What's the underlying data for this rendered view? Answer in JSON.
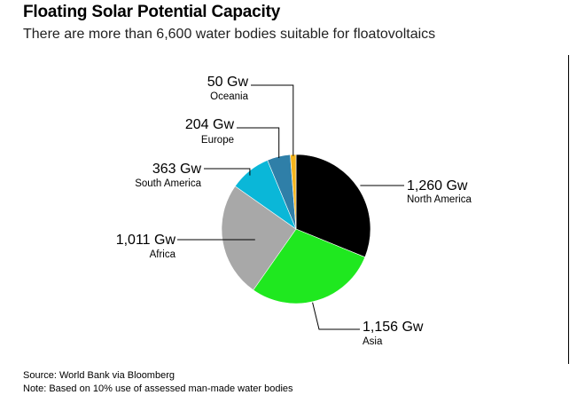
{
  "header": {
    "title": "Floating Solar Potential Capacity",
    "subtitle": "There are more than 6,600 water bodies suitable for floatovoltaics"
  },
  "footer": {
    "source": "Source: World Bank via Bloomberg",
    "note": "Note: Based on 10% use of assessed man-made water bodies"
  },
  "chart_data": {
    "type": "pie",
    "unit": "Gw",
    "slices": [
      {
        "name": "North America",
        "value": 1260,
        "label": "1,260 Gw",
        "color": "#000000"
      },
      {
        "name": "Asia",
        "value": 1156,
        "label": "1,156 Gw",
        "color": "#1fe81f"
      },
      {
        "name": "Africa",
        "value": 1011,
        "label": "1,011 Gw",
        "color": "#a8a8a8"
      },
      {
        "name": "South America",
        "value": 363,
        "label": "363 Gw",
        "color": "#0ab7d8"
      },
      {
        "name": "Europe",
        "value": 204,
        "label": "204 Gw",
        "color": "#2f7fa8"
      },
      {
        "name": "Oceania",
        "value": 50,
        "label": "50 Gw",
        "color": "#f5b51c"
      }
    ]
  }
}
